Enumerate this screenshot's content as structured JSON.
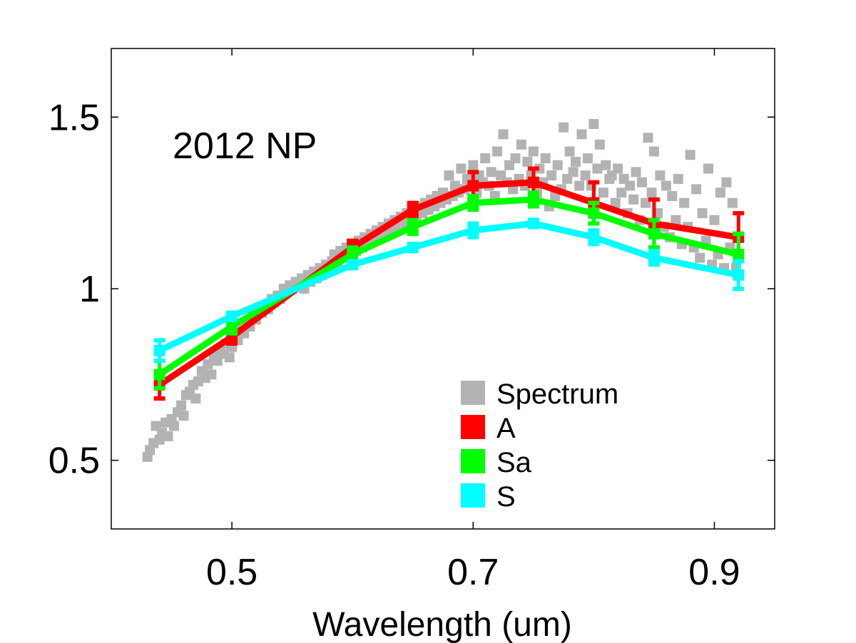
{
  "chart_data": {
    "type": "line",
    "title": "",
    "annotation": "2012 NP",
    "xlabel": "Wavelength (um)",
    "ylabel": "",
    "xlim": [
      0.4,
      0.95
    ],
    "ylim": [
      0.3,
      1.7
    ],
    "xticks": [
      0.5,
      0.7,
      0.9
    ],
    "xtick_labels": [
      "0.5",
      "0.7",
      "0.9"
    ],
    "yticks": [
      0.5,
      1.0,
      1.5
    ],
    "ytick_labels": [
      "0.5",
      "1",
      "1.5"
    ],
    "grid": false,
    "legend_position": "lower-right",
    "spectrum": {
      "name": "Spectrum",
      "color": "#b3b3b3",
      "points": [
        [
          0.43,
          0.51
        ],
        [
          0.432,
          0.53
        ],
        [
          0.435,
          0.55
        ],
        [
          0.437,
          0.6
        ],
        [
          0.44,
          0.56
        ],
        [
          0.442,
          0.58
        ],
        [
          0.445,
          0.61
        ],
        [
          0.447,
          0.57
        ],
        [
          0.45,
          0.62
        ],
        [
          0.452,
          0.6
        ],
        [
          0.455,
          0.64
        ],
        [
          0.458,
          0.66
        ],
        [
          0.46,
          0.63
        ],
        [
          0.462,
          0.69
        ],
        [
          0.465,
          0.7
        ],
        [
          0.468,
          0.72
        ],
        [
          0.47,
          0.68
        ],
        [
          0.472,
          0.73
        ],
        [
          0.475,
          0.76
        ],
        [
          0.478,
          0.74
        ],
        [
          0.48,
          0.78
        ],
        [
          0.483,
          0.75
        ],
        [
          0.485,
          0.8
        ],
        [
          0.488,
          0.79
        ],
        [
          0.49,
          0.82
        ],
        [
          0.493,
          0.81
        ],
        [
          0.495,
          0.84
        ],
        [
          0.498,
          0.8
        ],
        [
          0.5,
          0.83
        ],
        [
          0.503,
          0.86
        ],
        [
          0.505,
          0.85
        ],
        [
          0.508,
          0.88
        ],
        [
          0.51,
          0.87
        ],
        [
          0.513,
          0.9
        ],
        [
          0.515,
          0.89
        ],
        [
          0.518,
          0.92
        ],
        [
          0.52,
          0.91
        ],
        [
          0.523,
          0.94
        ],
        [
          0.525,
          0.93
        ],
        [
          0.528,
          0.95
        ],
        [
          0.53,
          0.94
        ],
        [
          0.533,
          0.97
        ],
        [
          0.535,
          0.96
        ],
        [
          0.538,
          0.98
        ],
        [
          0.54,
          0.97
        ],
        [
          0.543,
          1.0
        ],
        [
          0.545,
          0.99
        ],
        [
          0.548,
          1.01
        ],
        [
          0.55,
          1.0
        ],
        [
          0.553,
          1.02
        ],
        [
          0.555,
          1.01
        ],
        [
          0.558,
          1.03
        ],
        [
          0.56,
          1.0
        ],
        [
          0.563,
          1.04
        ],
        [
          0.565,
          1.02
        ],
        [
          0.568,
          1.05
        ],
        [
          0.57,
          1.03
        ],
        [
          0.573,
          1.06
        ],
        [
          0.575,
          1.04
        ],
        [
          0.578,
          1.07
        ],
        [
          0.58,
          1.05
        ],
        [
          0.583,
          1.08
        ],
        [
          0.585,
          1.1
        ],
        [
          0.588,
          1.07
        ],
        [
          0.59,
          1.11
        ],
        [
          0.593,
          1.09
        ],
        [
          0.595,
          1.12
        ],
        [
          0.598,
          1.1
        ],
        [
          0.6,
          1.13
        ],
        [
          0.603,
          1.11
        ],
        [
          0.605,
          1.14
        ],
        [
          0.608,
          1.12
        ],
        [
          0.61,
          1.15
        ],
        [
          0.613,
          1.13
        ],
        [
          0.615,
          1.16
        ],
        [
          0.618,
          1.14
        ],
        [
          0.62,
          1.17
        ],
        [
          0.623,
          1.15
        ],
        [
          0.625,
          1.18
        ],
        [
          0.628,
          1.16
        ],
        [
          0.63,
          1.19
        ],
        [
          0.633,
          1.17
        ],
        [
          0.635,
          1.2
        ],
        [
          0.638,
          1.18
        ],
        [
          0.64,
          1.21
        ],
        [
          0.643,
          1.19
        ],
        [
          0.645,
          1.22
        ],
        [
          0.648,
          1.2
        ],
        [
          0.65,
          1.23
        ],
        [
          0.653,
          1.21
        ],
        [
          0.655,
          1.24
        ],
        [
          0.658,
          1.22
        ],
        [
          0.66,
          1.25
        ],
        [
          0.663,
          1.23
        ],
        [
          0.665,
          1.26
        ],
        [
          0.668,
          1.24
        ],
        [
          0.67,
          1.27
        ],
        [
          0.673,
          1.25
        ],
        [
          0.675,
          1.28
        ],
        [
          0.678,
          1.26
        ],
        [
          0.68,
          1.33
        ],
        [
          0.683,
          1.27
        ],
        [
          0.685,
          1.3
        ],
        [
          0.688,
          1.28
        ],
        [
          0.69,
          1.35
        ],
        [
          0.693,
          1.29
        ],
        [
          0.695,
          1.32
        ],
        [
          0.698,
          1.3
        ],
        [
          0.7,
          1.36
        ],
        [
          0.703,
          1.28
        ],
        [
          0.705,
          1.33
        ],
        [
          0.708,
          1.31
        ],
        [
          0.71,
          1.38
        ],
        [
          0.713,
          1.3
        ],
        [
          0.715,
          1.34
        ],
        [
          0.718,
          1.27
        ],
        [
          0.72,
          1.4
        ],
        [
          0.723,
          1.33
        ],
        [
          0.725,
          1.45
        ],
        [
          0.728,
          1.31
        ],
        [
          0.73,
          1.36
        ],
        [
          0.733,
          1.29
        ],
        [
          0.735,
          1.38
        ],
        [
          0.738,
          1.32
        ],
        [
          0.74,
          1.42
        ],
        [
          0.743,
          1.3
        ],
        [
          0.745,
          1.37
        ],
        [
          0.748,
          1.33
        ],
        [
          0.75,
          1.4
        ],
        [
          0.753,
          1.28
        ],
        [
          0.755,
          1.35
        ],
        [
          0.758,
          1.31
        ],
        [
          0.76,
          1.38
        ],
        [
          0.763,
          1.24
        ],
        [
          0.765,
          1.33
        ],
        [
          0.768,
          1.27
        ],
        [
          0.77,
          1.36
        ],
        [
          0.773,
          1.29
        ],
        [
          0.775,
          1.47
        ],
        [
          0.778,
          1.32
        ],
        [
          0.78,
          1.4
        ],
        [
          0.783,
          1.34
        ],
        [
          0.785,
          1.37
        ],
        [
          0.788,
          1.3
        ],
        [
          0.79,
          1.45
        ],
        [
          0.793,
          1.33
        ],
        [
          0.795,
          1.38
        ],
        [
          0.798,
          1.3
        ],
        [
          0.8,
          1.48
        ],
        [
          0.803,
          1.35
        ],
        [
          0.805,
          1.42
        ],
        [
          0.808,
          1.28
        ],
        [
          0.81,
          1.36
        ],
        [
          0.813,
          1.32
        ],
        [
          0.815,
          1.33
        ],
        [
          0.818,
          1.25
        ],
        [
          0.82,
          1.35
        ],
        [
          0.823,
          1.28
        ],
        [
          0.825,
          1.32
        ],
        [
          0.828,
          1.22
        ],
        [
          0.83,
          1.3
        ],
        [
          0.833,
          1.26
        ],
        [
          0.835,
          1.34
        ],
        [
          0.838,
          1.2
        ],
        [
          0.84,
          1.31
        ],
        [
          0.843,
          1.25
        ],
        [
          0.845,
          1.44
        ],
        [
          0.848,
          1.28
        ],
        [
          0.85,
          1.4
        ],
        [
          0.853,
          1.22
        ],
        [
          0.855,
          1.33
        ],
        [
          0.858,
          1.18
        ],
        [
          0.86,
          1.3
        ],
        [
          0.863,
          1.15
        ],
        [
          0.865,
          1.27
        ],
        [
          0.868,
          1.2
        ],
        [
          0.87,
          1.32
        ],
        [
          0.873,
          1.13
        ],
        [
          0.875,
          1.25
        ],
        [
          0.878,
          1.18
        ],
        [
          0.88,
          1.39
        ],
        [
          0.883,
          1.12
        ],
        [
          0.885,
          1.29
        ],
        [
          0.888,
          1.09
        ],
        [
          0.89,
          1.22
        ],
        [
          0.893,
          1.14
        ],
        [
          0.895,
          1.35
        ],
        [
          0.898,
          1.07
        ],
        [
          0.9,
          1.2
        ],
        [
          0.903,
          1.1
        ],
        [
          0.905,
          1.28
        ],
        [
          0.908,
          1.06
        ],
        [
          0.91,
          1.31
        ],
        [
          0.913,
          1.12
        ],
        [
          0.915,
          1.25
        ],
        [
          0.918,
          1.06
        ]
      ]
    },
    "series": [
      {
        "name": "A",
        "color": "#ff0000",
        "x": [
          0.44,
          0.5,
          0.6,
          0.65,
          0.7,
          0.75,
          0.8,
          0.85,
          0.92
        ],
        "y": [
          0.72,
          0.86,
          1.12,
          1.23,
          1.3,
          1.31,
          1.25,
          1.19,
          1.15
        ],
        "err": [
          0.04,
          0.02,
          0.02,
          0.02,
          0.04,
          0.04,
          0.06,
          0.07,
          0.07
        ]
      },
      {
        "name": "Sa",
        "color": "#00ff00",
        "x": [
          0.44,
          0.5,
          0.6,
          0.65,
          0.7,
          0.75,
          0.8,
          0.85,
          0.92
        ],
        "y": [
          0.75,
          0.89,
          1.1,
          1.18,
          1.25,
          1.26,
          1.22,
          1.16,
          1.1
        ],
        "err": [
          0.04,
          0.02,
          0.02,
          0.02,
          0.02,
          0.02,
          0.03,
          0.04,
          0.06
        ]
      },
      {
        "name": "S",
        "color": "#00ffff",
        "x": [
          0.44,
          0.5,
          0.6,
          0.65,
          0.7,
          0.75,
          0.8,
          0.85,
          0.92
        ],
        "y": [
          0.82,
          0.92,
          1.07,
          1.12,
          1.17,
          1.19,
          1.15,
          1.09,
          1.04
        ],
        "err": [
          0.03,
          0.01,
          0.01,
          0.01,
          0.02,
          0.01,
          0.02,
          0.02,
          0.04
        ]
      }
    ],
    "legend": [
      "Spectrum",
      "A",
      "Sa",
      "S"
    ]
  }
}
